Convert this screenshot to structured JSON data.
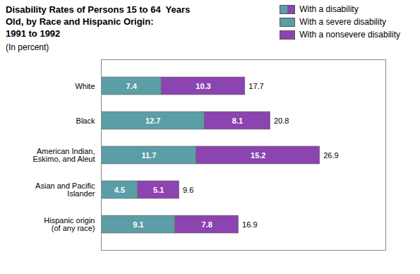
{
  "chart_data": {
    "type": "bar",
    "orientation": "horizontal",
    "stacked": true,
    "title": "Disability Rates of Persons 15 to 64  Years\nOld, by Race and Hispanic Origin:\n1991 to 1992",
    "subtitle": "(In percent)",
    "categories": [
      "White",
      "Black",
      "American Indian,\nEskimo, and Aleut",
      "Asian and Pacific\nIslander",
      "Hispanic origin\n(of any race)"
    ],
    "series": [
      {
        "name": "With a severe disability",
        "color": "#5b9ea6",
        "values": [
          7.4,
          12.7,
          11.7,
          4.5,
          9.1
        ]
      },
      {
        "name": "With a nonsevere disability",
        "color": "#8b44b0",
        "values": [
          10.3,
          8.1,
          15.2,
          5.1,
          7.8
        ]
      }
    ],
    "totals": {
      "name": "With a disability",
      "values": [
        17.7,
        20.8,
        26.9,
        9.6,
        16.9
      ]
    },
    "xlim": [
      0,
      35
    ],
    "xticks": [],
    "tick_labels": "y",
    "grid": false,
    "legend": "upper right",
    "data_labels": true
  }
}
